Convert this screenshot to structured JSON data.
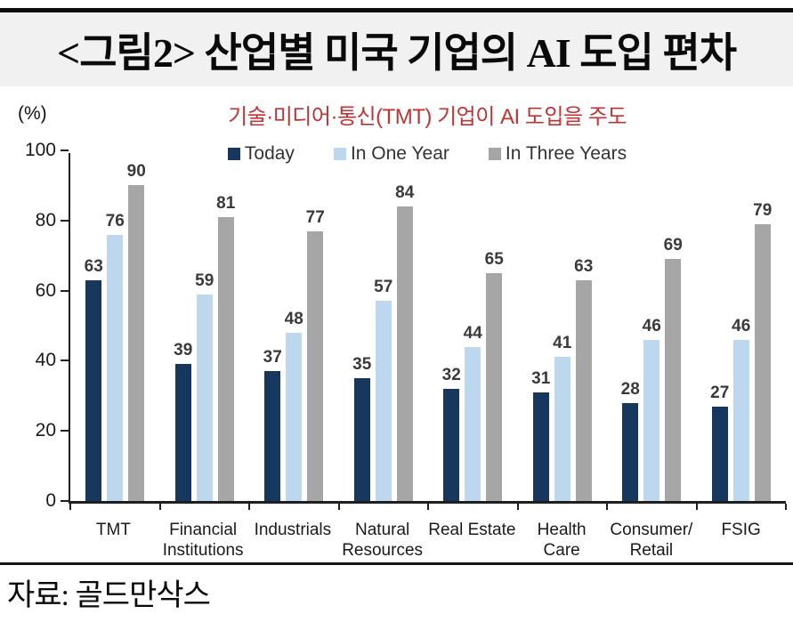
{
  "header": {
    "title": "<그림2> 산업별 미국 기업의 AI 도입 편차"
  },
  "chart": {
    "y_unit_label": "(%)",
    "subtitle": "기술·미디어·통신(TMT) 기업이 AI 도입을 주도",
    "subtitle_color": "#c23232"
  },
  "footer": {
    "source": "자료: 골드만삭스"
  },
  "chart_data": {
    "type": "bar",
    "title": "산업별 미국 기업의 AI 도입 편차",
    "xlabel": "",
    "ylabel": "(%)",
    "ylim": [
      0,
      100
    ],
    "yticks": [
      0,
      20,
      40,
      60,
      80,
      100
    ],
    "grid": false,
    "legend_position": "top-center",
    "categories": [
      "TMT",
      "Financial\nInstitutions",
      "Industrials",
      "Natural\nResources",
      "Real Estate",
      "Health\nCare",
      "Consumer/\nRetail",
      "FSIG"
    ],
    "series": [
      {
        "name": "Today",
        "color": "#17375e",
        "values": [
          63,
          39,
          37,
          35,
          32,
          31,
          28,
          27
        ]
      },
      {
        "name": "In One Year",
        "color": "#bdd7ee",
        "values": [
          76,
          59,
          48,
          57,
          44,
          41,
          46,
          46
        ]
      },
      {
        "name": "In Three Years",
        "color": "#a6a6a6",
        "values": [
          90,
          81,
          77,
          84,
          65,
          63,
          69,
          79
        ]
      }
    ]
  }
}
